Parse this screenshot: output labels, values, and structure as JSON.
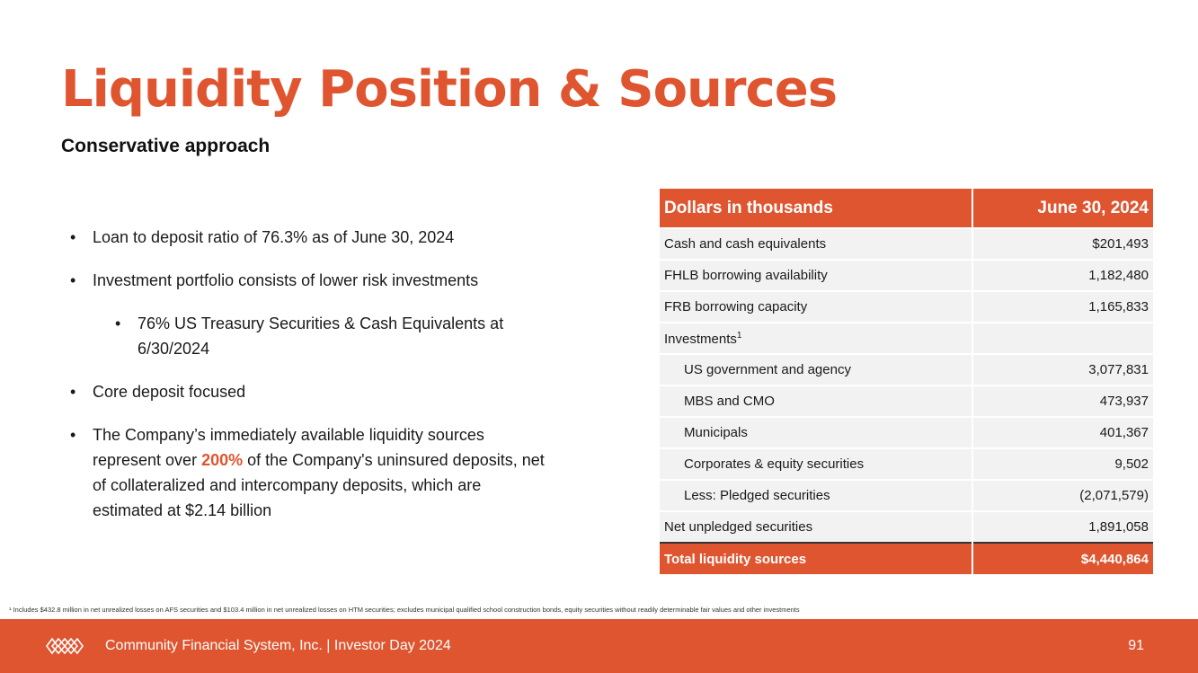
{
  "title": "Liquidity Position & Sources",
  "subtitle": "Conservative approach",
  "bullets": {
    "b1": "Loan to deposit ratio of 76.3% as of June 30, 2024",
    "b2": "Investment portfolio consists of lower risk investments",
    "b3": "76% US Treasury Securities & Cash Equivalents at 6/30/2024",
    "b4": "Core deposit focused",
    "b5_pre": "The Company’s immediately available liquidity sources represent over ",
    "b5_highlight": "200%",
    "b5_post": " of the Company's uninsured deposits, net of collateralized and intercompany deposits, which are estimated at $2.14 billion",
    "bullet_char": "•"
  },
  "table": {
    "header_label": "Dollars in thousands",
    "header_date": "June 30, 2024",
    "rows": [
      {
        "label": "Cash and cash equivalents",
        "value": "$201,493"
      },
      {
        "label": "FHLB borrowing availability",
        "value": "1,182,480"
      },
      {
        "label": "FRB borrowing capacity",
        "value": "1,165,833"
      },
      {
        "label": "Investments",
        "sup": "1",
        "value": ""
      },
      {
        "label": "US government and agency",
        "value": "3,077,831"
      },
      {
        "label": "MBS and CMO",
        "value": "473,937"
      },
      {
        "label": "Municipals",
        "value": "401,367"
      },
      {
        "label": "Corporates & equity securities",
        "value": "9,502"
      },
      {
        "label": "Less: Pledged securities",
        "value": "(2,071,579)"
      },
      {
        "label": "Net unpledged securities",
        "value": "1,891,058"
      }
    ],
    "total_label": "Total liquidity sources",
    "total_value": "$4,440,864"
  },
  "footnote": "¹ Includes $432.8 million in net unrealized losses on AFS securities and $103.4 million in net unrealized losses on HTM securities; excludes municipal qualified school construction bonds, equity securities without readily determinable fair values and other investments",
  "footer": {
    "text": "Community Financial System, Inc.  |  Investor Day 2024",
    "page": "91"
  },
  "colors": {
    "accent": "#df5530",
    "row_bg": "#f2f2f2"
  }
}
